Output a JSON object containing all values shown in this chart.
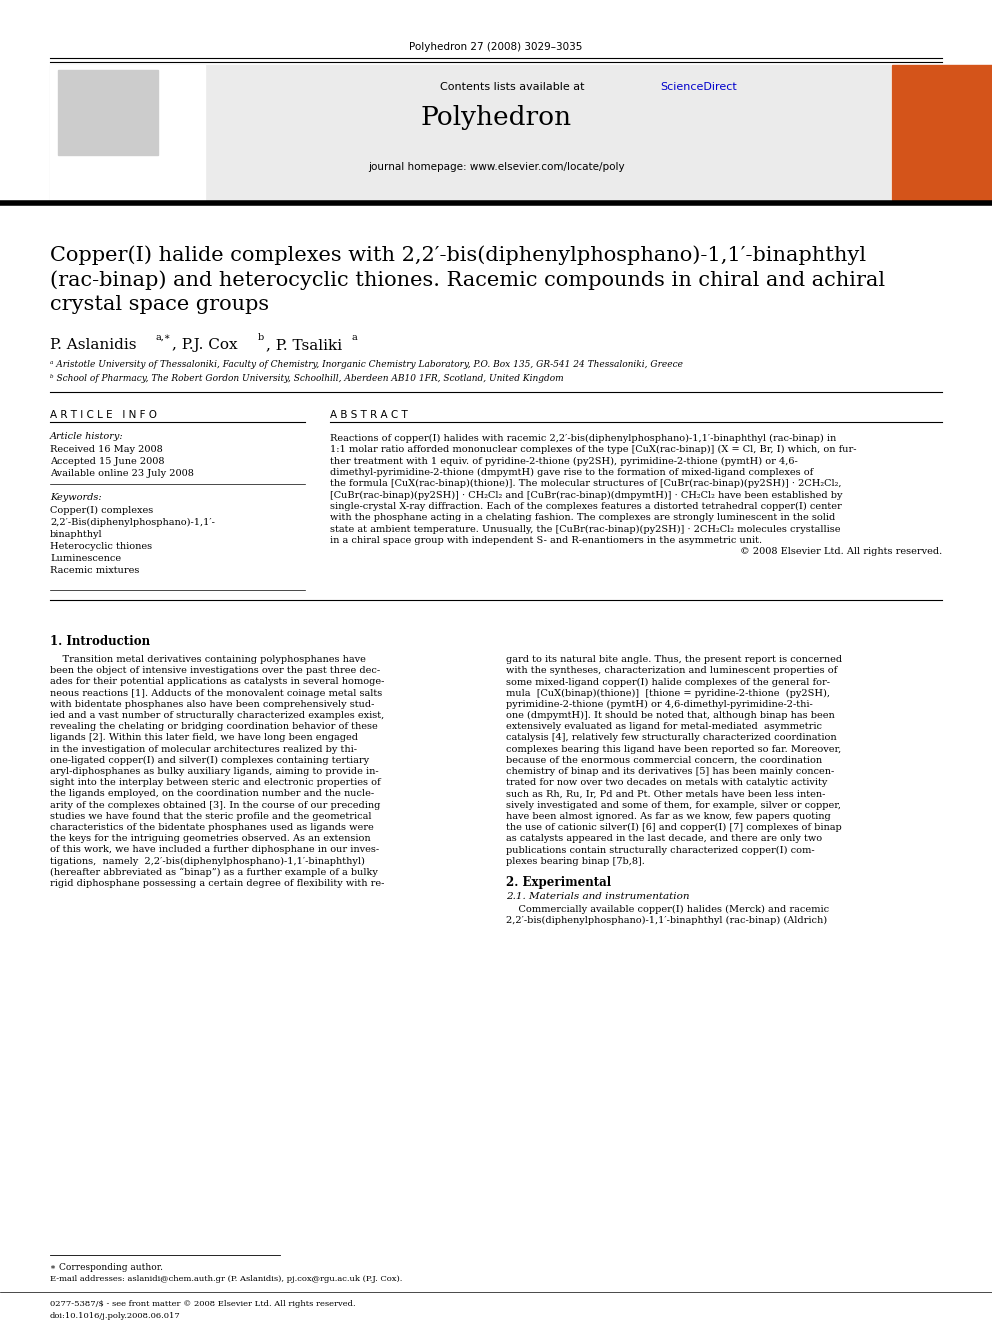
{
  "journal_line": "Polyhedron 27 (2008) 3029–3035",
  "contents_line": "Contents lists available at ScienceDirect",
  "sciencedirect_color": "#0000CC",
  "journal_name": "Polyhedron",
  "journal_homepage": "journal homepage: www.elsevier.com/locate/poly",
  "title": "Copper(I) halide complexes with 2,2′-bis(diphenylphosphano)-1,1′-binaphthyl\n(rac-binap) and heterocyclic thiones. Racemic compounds in chiral and achiral\ncrystal space groups",
  "authors": "P. Aslanidis a,∗, P.J. Cox b, P. Tsaliki a",
  "affil_a": "ᵃ Aristotle University of Thessaloniki, Faculty of Chemistry, Inorganic Chemistry Laboratory, P.O. Box 135, GR-541 24 Thessaloniki, Greece",
  "affil_b": "ᵇ School of Pharmacy, The Robert Gordon University, Schoolhill, Aberdeen AB10 1FR, Scotland, United Kingdom",
  "article_info_header": "A R T I C L E   I N F O",
  "article_history_header": "Article history:",
  "received": "Received 16 May 2008",
  "accepted": "Accepted 15 June 2008",
  "available": "Available online 23 July 2008",
  "keywords_header": "Keywords:",
  "keywords": [
    "Copper(I) complexes",
    "2,2′-Bis(diphenylphosphano)-1,1′-",
    "binaphthyl",
    "Heterocyclic thiones",
    "Luminescence",
    "Racemic mixtures"
  ],
  "abstract_header": "A B S T R A C T",
  "section1_header": "1. Introduction",
  "section2_header": "2. Experimental",
  "section21_header": "2.1. Materials and instrumentation",
  "footnote_star": "∗ Corresponding author.",
  "footnote_email": "E-mail addresses: aslanidi@chem.auth.gr (P. Aslanidis), pj.cox@rgu.ac.uk (P.J. Cox).",
  "footer_left": "0277-5387/$ - see front matter © 2008 Elsevier Ltd. All rights reserved.",
  "footer_doi": "doi:10.1016/j.poly.2008.06.017",
  "bg_color": "#FFFFFF",
  "elsevier_text_color": "#FF6600",
  "sciencedirect_blue": "#0000CC",
  "orange_cover": "#D4541A",
  "text_color": "#000000"
}
